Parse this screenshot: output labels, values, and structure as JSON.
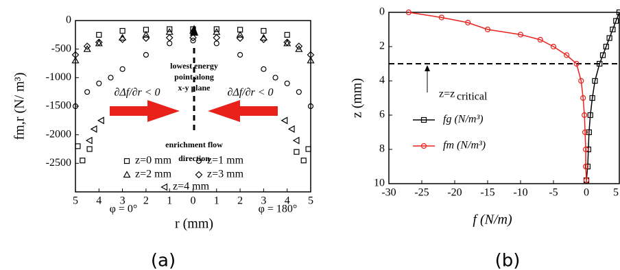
{
  "chart_data": [
    {
      "type": "scatter",
      "caption": "(a)",
      "x_label": "r (mm)",
      "y_label": "fm,r (N/ m³)",
      "xlim": [
        -5,
        5
      ],
      "ylim": [
        -3000,
        0
      ],
      "xticks": [
        {
          "value": -5,
          "label": "5"
        },
        {
          "value": -4,
          "label": "4"
        },
        {
          "value": -3,
          "label": "3"
        },
        {
          "value": -2,
          "label": "2"
        },
        {
          "value": -1,
          "label": "1"
        },
        0,
        1,
        2,
        3,
        4,
        5
      ],
      "yticks": [
        0,
        -500,
        -1000,
        -1500,
        -2000,
        -2500
      ],
      "annotations": [
        "lowest energy",
        "point along",
        "x-y plane",
        "∂Δf/∂r < 0",
        "∂Δf/∂r < 0",
        "enrichment flow",
        "direction",
        "φ = 0°",
        "φ = 180°"
      ],
      "series": [
        {
          "name": "z=0 mm",
          "marker": "square",
          "color": "#000000",
          "x": [
            -4.9,
            -4.7,
            -4.4,
            -4,
            -3,
            -2,
            -1,
            0,
            1,
            2,
            3,
            4,
            4.4,
            4.7,
            4.9
          ],
          "values": [
            -2200,
            -2450,
            -2250,
            -250,
            -180,
            -160,
            -150,
            -150,
            -150,
            -160,
            -180,
            -250,
            -2300,
            -2450,
            -2250
          ]
        },
        {
          "name": "z=1 mm",
          "marker": "circle",
          "color": "#000000",
          "x": [
            -5,
            -4.5,
            -4,
            -3.5,
            -3,
            -2,
            -1,
            0,
            1,
            2,
            3,
            3.5,
            4,
            4.5,
            5
          ],
          "values": [
            -1500,
            -1250,
            -1100,
            -1000,
            -850,
            -600,
            -400,
            -350,
            -400,
            -600,
            -850,
            -1000,
            -1100,
            -1250,
            -1500
          ]
        },
        {
          "name": "z=2 mm",
          "marker": "triangle",
          "color": "#000000",
          "x": [
            -5,
            -4.5,
            -4,
            -3,
            -2,
            -1,
            0,
            1,
            2,
            3,
            4,
            4.5,
            5
          ],
          "values": [
            -700,
            -500,
            -400,
            -300,
            -250,
            -200,
            -180,
            -200,
            -250,
            -300,
            -400,
            -500,
            -700
          ]
        },
        {
          "name": "z=3 mm",
          "marker": "diamond",
          "color": "#000000",
          "x": [
            -5,
            -4.5,
            -4,
            -3,
            -2,
            -1,
            0,
            1,
            2,
            3,
            4,
            4.5,
            5
          ],
          "values": [
            -600,
            -450,
            -380,
            -330,
            -310,
            -300,
            -300,
            -300,
            -310,
            -330,
            -380,
            -450,
            -600
          ]
        },
        {
          "name": "z=4 mm",
          "marker": "left-triangle",
          "color": "#000000",
          "x": [
            -4.4,
            -4.2,
            -3.9,
            3.9,
            4.2,
            4.4
          ],
          "values": [
            -2100,
            -1900,
            -1750,
            -1750,
            -1900,
            -2100
          ]
        }
      ]
    },
    {
      "type": "line",
      "caption": "(b)",
      "x_label": "f (N/m)",
      "y_label": "z (mm)",
      "xlim": [
        -30,
        5
      ],
      "ylim": [
        10,
        0
      ],
      "xticks": [
        -30,
        -25,
        -20,
        -15,
        -10,
        -5,
        0,
        5
      ],
      "yticks": [
        0,
        2,
        4,
        6,
        8,
        10
      ],
      "annotations": [
        "z=z",
        "critical"
      ],
      "series": [
        {
          "name": "fg (N/m³)",
          "marker": "square",
          "color": "#000000",
          "x": [
            5,
            4.5,
            4,
            3.5,
            3,
            2.5,
            2,
            1.3,
            0.9,
            0.6,
            0.4,
            0.3,
            0.2,
            0
          ],
          "values": [
            0,
            0.5,
            1,
            1.5,
            2,
            2.5,
            3,
            4,
            5,
            6,
            7,
            8,
            9,
            9.8
          ]
        },
        {
          "name": "fm (N/m³)",
          "marker": "circle",
          "color": "#e8221b",
          "x": [
            -27,
            -22,
            -18,
            -15,
            -10,
            -7,
            -5,
            -3,
            -1.5,
            -0.8,
            -0.5,
            -0.3,
            -0.2,
            -0.1,
            -0.1,
            0
          ],
          "values": [
            0,
            0.3,
            0.6,
            1,
            1.3,
            1.6,
            2,
            2.5,
            3,
            4,
            5,
            6,
            7,
            8,
            9,
            9.8
          ]
        }
      ]
    }
  ]
}
